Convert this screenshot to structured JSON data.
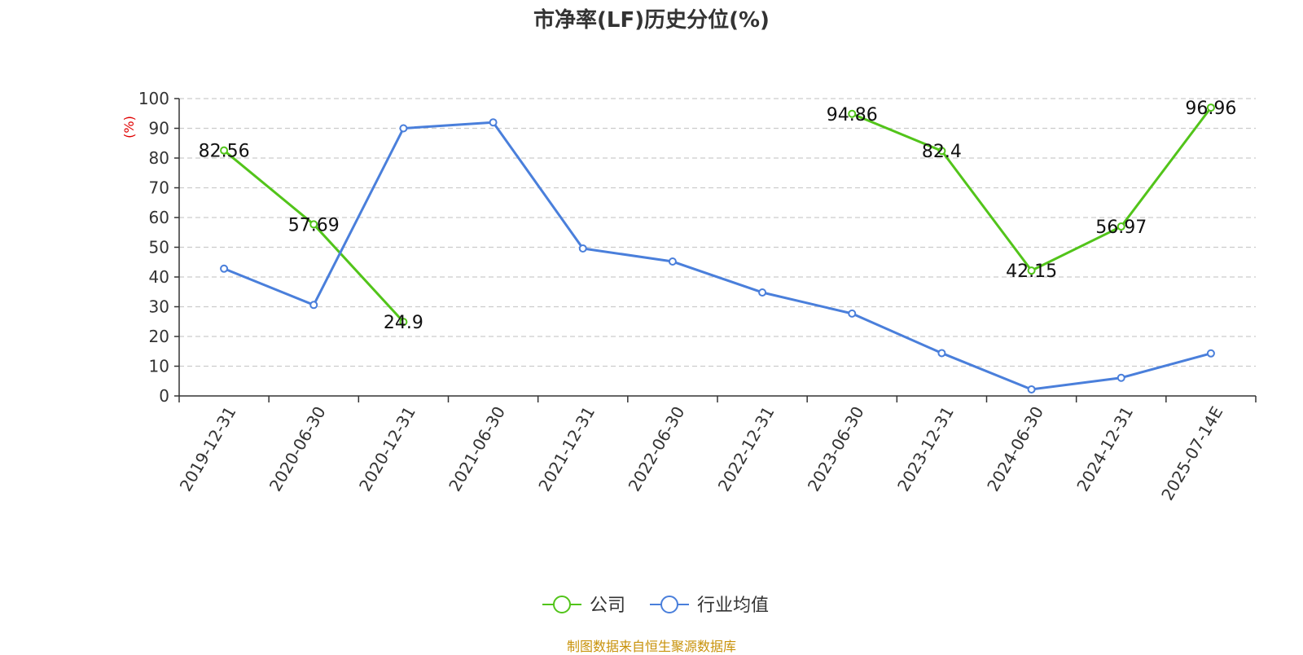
{
  "chart_data": {
    "type": "line",
    "title": "市净率(LF)历史分位(%)",
    "ylabel": "(%)",
    "xlabel": "",
    "ylim": [
      0,
      100
    ],
    "yticks": [
      0,
      10,
      20,
      30,
      40,
      50,
      60,
      70,
      80,
      90,
      100
    ],
    "grid": true,
    "legend_position": "bottom-center",
    "categories": [
      "2019-12-31",
      "2020-06-30",
      "2020-12-31",
      "2021-06-30",
      "2021-12-31",
      "2022-06-30",
      "2022-12-31",
      "2023-06-30",
      "2023-12-31",
      "2024-06-30",
      "2024-12-31",
      "2025-07-14E"
    ],
    "series": [
      {
        "name": "公司",
        "color": "#52c41a",
        "show_labels": true,
        "values": [
          82.56,
          57.69,
          24.9,
          null,
          null,
          null,
          null,
          94.86,
          82.4,
          42.15,
          56.97,
          96.96
        ],
        "labels": [
          "82.56",
          "57.69",
          "24.9",
          "",
          "",
          "",
          "",
          "94.86",
          "82.4",
          "42.15",
          "56.97",
          "96.96"
        ]
      },
      {
        "name": "行业均值",
        "color": "#4a7fdb",
        "show_labels": false,
        "values": [
          42.8,
          30.6,
          90.0,
          92.0,
          49.6,
          45.2,
          34.8,
          27.7,
          14.4,
          2.2,
          6.1,
          14.3
        ]
      }
    ]
  },
  "source_note": "制图数据来自恒生聚源数据库"
}
